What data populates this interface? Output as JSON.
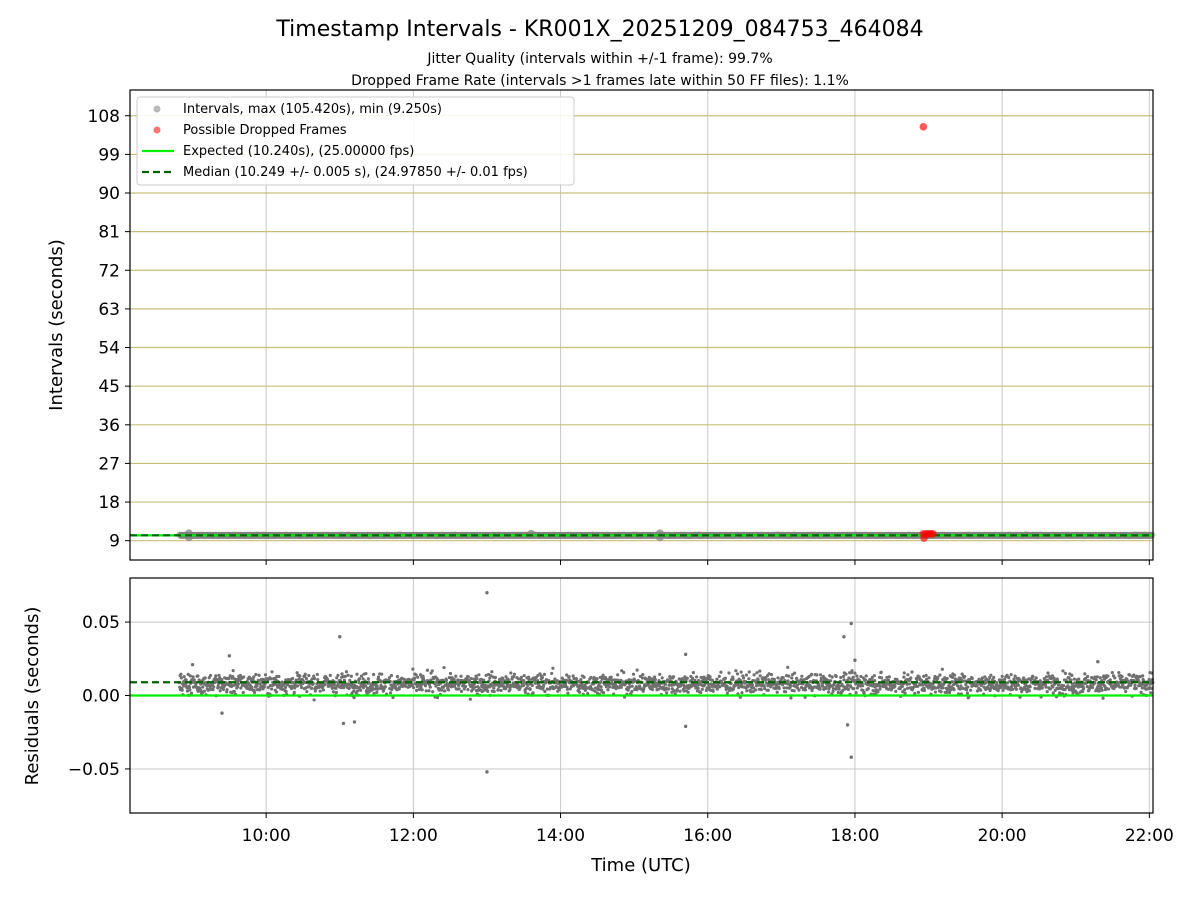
{
  "chart_data": [
    {
      "type": "scatter",
      "title": "Timestamp Intervals - KR001X_20251209_084753_464084",
      "subtitle_lines": [
        "Jitter Quality (intervals within +/-1 frame): 99.7%",
        "Dropped Frame Rate (intervals >1 frames late within 50 FF files): 1.1%"
      ],
      "ylabel": "Intervals (seconds)",
      "ylim": [
        4.5,
        114
      ],
      "y_ticks": [
        9,
        18,
        27,
        36,
        45,
        54,
        63,
        72,
        81,
        90,
        99,
        108
      ],
      "y_tick_labels": [
        "9",
        "18",
        "27",
        "36",
        "45",
        "54",
        "63",
        "72",
        "81",
        "90",
        "99",
        "108"
      ],
      "xlim_hours": [
        8.15,
        22.05
      ],
      "x_ticks_hours": [
        10,
        12,
        14,
        16,
        18,
        20,
        22
      ],
      "grid": true,
      "legend_position": "upper-left",
      "legend": [
        "Intervals, max (105.420s), min (9.250s)",
        "Possible Dropped Frames",
        "Expected (10.240s), (25.00000 fps)",
        "Median (10.249 +/- 0.005 s), (24.97850 +/- 0.01 fps)"
      ],
      "colors": {
        "intervals": "#808080",
        "dropped": "#ff0000",
        "expected": "#00ee00",
        "median": "#006400",
        "hgrid": "#c8bf7a",
        "vgrid": "#c8c8c8"
      },
      "series": [
        {
          "name": "Intervals, max (105.420s), min (9.250s)",
          "x_range_hours": [
            8.82,
            22.05
          ],
          "typical_value": 10.249
        },
        {
          "name": "Possible Dropped Frames",
          "points": [
            [
              18.93,
              105.42
            ],
            [
              18.93,
              10.6
            ],
            [
              18.97,
              10.6
            ],
            [
              19.0,
              10.6
            ],
            [
              19.03,
              10.6
            ],
            [
              19.06,
              10.6
            ],
            [
              18.94,
              9.6
            ]
          ]
        },
        {
          "name": "Expected (10.240s), (25.00000 fps)",
          "value": 10.24
        },
        {
          "name": "Median (10.249 +/- 0.005 s), (24.97850 +/- 0.01 fps)",
          "value": 10.249
        }
      ]
    },
    {
      "type": "scatter",
      "ylabel": "Residuals (seconds)",
      "xlabel": "Time (UTC)",
      "ylim": [
        -0.08,
        0.08
      ],
      "y_ticks": [
        0.05,
        0.0,
        -0.05
      ],
      "y_tick_labels": [
        "0.05",
        "0.00",
        "−0.05"
      ],
      "xlim_hours": [
        8.15,
        22.05
      ],
      "x_ticks_hours": [
        10,
        12,
        14,
        16,
        18,
        20,
        22
      ],
      "x_tick_labels": [
        "10:00",
        "12:00",
        "14:00",
        "16:00",
        "18:00",
        "20:00",
        "22:00"
      ],
      "grid": true,
      "series": [
        {
          "name": "residuals",
          "x_range_hours": [
            8.82,
            22.05
          ],
          "center": 0.008,
          "spread": 0.006
        },
        {
          "name": "outliers",
          "points": [
            [
              13.0,
              0.07
            ],
            [
              13.0,
              -0.052
            ],
            [
              11.0,
              0.04
            ],
            [
              17.95,
              0.049
            ],
            [
              17.95,
              -0.042
            ],
            [
              17.85,
              0.04
            ],
            [
              9.5,
              0.027
            ],
            [
              15.7,
              0.028
            ],
            [
              15.7,
              -0.021
            ],
            [
              11.2,
              -0.018
            ],
            [
              11.05,
              -0.019
            ],
            [
              17.9,
              -0.02
            ],
            [
              9.4,
              -0.012
            ],
            [
              9.0,
              0.021
            ],
            [
              18.0,
              0.024
            ],
            [
              21.3,
              0.023
            ]
          ]
        },
        {
          "name": "expected",
          "value": 0.0
        },
        {
          "name": "median",
          "value": 0.009
        }
      ]
    }
  ]
}
